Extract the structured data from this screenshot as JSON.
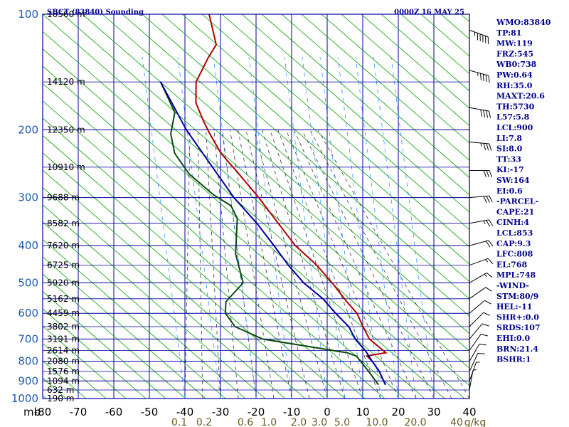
{
  "header": {
    "station_title": "SBCT (83840) Sounding",
    "time": "0000Z 16 MAY 25"
  },
  "chart_data": {
    "type": "line",
    "title": "SBCT (83840) Sounding",
    "xlabel": "",
    "ylabel": "mb",
    "xlim": [
      -80,
      40
    ],
    "ylim": [
      1000,
      100
    ],
    "pressure_labels": [
      "100",
      "200",
      "300",
      "400",
      "500",
      "600",
      "700",
      "800",
      "900",
      "1000"
    ],
    "temp_ticks": [
      "-80",
      "-70",
      "-60",
      "-50",
      "-40",
      "-30",
      "-20",
      "-10",
      "0",
      "10",
      "20",
      "30",
      "40"
    ],
    "mixing_ratio_labels": [
      "0.1",
      "0.2",
      "0.6",
      "1.0",
      "2.0",
      "3.0",
      "5.0",
      "10.0",
      "20.0",
      "40",
      "g/kg"
    ],
    "height_labels": [
      {
        "p": 100,
        "text": "16560 m"
      },
      {
        "p": 150,
        "text": "14120 m"
      },
      {
        "p": 200,
        "text": "12350 m"
      },
      {
        "p": 250,
        "text": "10910 m"
      },
      {
        "p": 300,
        "text": "9688 m"
      },
      {
        "p": 350,
        "text": "8582 m"
      },
      {
        "p": 400,
        "text": "7620 m"
      },
      {
        "p": 450,
        "text": "6725 m"
      },
      {
        "p": 500,
        "text": "5920 m"
      },
      {
        "p": 550,
        "text": "5162 m"
      },
      {
        "p": 600,
        "text": "4459 m"
      },
      {
        "p": 650,
        "text": "3802 m"
      },
      {
        "p": 700,
        "text": "3191 m"
      },
      {
        "p": 750,
        "text": "2614 m"
      },
      {
        "p": 800,
        "text": "2080 m"
      },
      {
        "p": 850,
        "text": "1576 m"
      },
      {
        "p": 900,
        "text": "1094 m"
      },
      {
        "p": 950,
        "text": "632 m"
      },
      {
        "p": 1000,
        "text": "190 m"
      }
    ],
    "series": [
      {
        "name": "",
        "role": "temperature",
        "color": "#b00000",
        "points": [
          {
            "p": 100,
            "t": -71
          },
          {
            "p": 120,
            "t": -66
          },
          {
            "p": 130,
            "t": -67
          },
          {
            "p": 150,
            "t": -68
          },
          {
            "p": 170,
            "t": -66
          },
          {
            "p": 190,
            "t": -62
          },
          {
            "p": 205,
            "t": -59
          },
          {
            "p": 230,
            "t": -54
          },
          {
            "p": 260,
            "t": -47
          },
          {
            "p": 300,
            "t": -39
          },
          {
            "p": 350,
            "t": -31
          },
          {
            "p": 400,
            "t": -24
          },
          {
            "p": 450,
            "t": -16
          },
          {
            "p": 500,
            "t": -10
          },
          {
            "p": 560,
            "t": -4
          },
          {
            "p": 600,
            "t": 0
          },
          {
            "p": 650,
            "t": 3
          },
          {
            "p": 700,
            "t": 6
          },
          {
            "p": 760,
            "t": 12
          },
          {
            "p": 775,
            "t": 7
          },
          {
            "p": 800,
            "t": 9
          },
          {
            "p": 850,
            "t": 12
          },
          {
            "p": 920,
            "t": 15
          }
        ]
      },
      {
        "name": "",
        "role": "dewpoint",
        "color": "#0a4a10",
        "points": [
          {
            "p": 150,
            "t": -78
          },
          {
            "p": 180,
            "t": -71
          },
          {
            "p": 205,
            "t": -70
          },
          {
            "p": 230,
            "t": -67
          },
          {
            "p": 260,
            "t": -61
          },
          {
            "p": 295,
            "t": -52
          },
          {
            "p": 315,
            "t": -46
          },
          {
            "p": 340,
            "t": -43
          },
          {
            "p": 420,
            "t": -40
          },
          {
            "p": 500,
            "t": -35
          },
          {
            "p": 560,
            "t": -38
          },
          {
            "p": 600,
            "t": -37
          },
          {
            "p": 650,
            "t": -33
          },
          {
            "p": 700,
            "t": -24
          },
          {
            "p": 760,
            "t": 1
          },
          {
            "p": 775,
            "t": 4
          },
          {
            "p": 850,
            "t": 9
          },
          {
            "p": 920,
            "t": 13
          }
        ]
      },
      {
        "name": "",
        "role": "parcel",
        "color": "#0000a0",
        "points": [
          {
            "p": 150,
            "t": -78
          },
          {
            "p": 200,
            "t": -66
          },
          {
            "p": 250,
            "t": -55
          },
          {
            "p": 300,
            "t": -46
          },
          {
            "p": 350,
            "t": -37
          },
          {
            "p": 400,
            "t": -30
          },
          {
            "p": 450,
            "t": -24
          },
          {
            "p": 500,
            "t": -18
          },
          {
            "p": 550,
            "t": -11
          },
          {
            "p": 600,
            "t": -6
          },
          {
            "p": 650,
            "t": -1
          },
          {
            "p": 700,
            "t": 2
          },
          {
            "p": 750,
            "t": 6
          },
          {
            "p": 800,
            "t": 9
          },
          {
            "p": 850,
            "t": 12
          },
          {
            "p": 920,
            "t": 15
          }
        ]
      }
    ],
    "wind_barbs": [
      {
        "p": 110,
        "dir": 290,
        "spd": 55
      },
      {
        "p": 140,
        "dir": 285,
        "spd": 45
      },
      {
        "p": 175,
        "dir": 280,
        "spd": 40
      },
      {
        "p": 215,
        "dir": 275,
        "spd": 35
      },
      {
        "p": 255,
        "dir": 270,
        "spd": 30
      },
      {
        "p": 300,
        "dir": 265,
        "spd": 30
      },
      {
        "p": 350,
        "dir": 260,
        "spd": 25
      },
      {
        "p": 400,
        "dir": 255,
        "spd": 20
      },
      {
        "p": 450,
        "dir": 250,
        "spd": 15
      },
      {
        "p": 500,
        "dir": 240,
        "spd": 15
      },
      {
        "p": 550,
        "dir": 235,
        "spd": 10
      },
      {
        "p": 600,
        "dir": 230,
        "spd": 10
      },
      {
        "p": 650,
        "dir": 225,
        "spd": 10
      },
      {
        "p": 700,
        "dir": 220,
        "spd": 10
      },
      {
        "p": 750,
        "dir": 215,
        "spd": 10
      },
      {
        "p": 800,
        "dir": 210,
        "spd": 10
      },
      {
        "p": 850,
        "dir": 205,
        "spd": 10
      },
      {
        "p": 900,
        "dir": 200,
        "spd": 5
      },
      {
        "p": 950,
        "dir": 190,
        "spd": 5
      }
    ]
  },
  "indices": [
    "WMO:83840",
    "TP:81",
    "MW:119",
    "FRZ:545",
    "WB0:738",
    "PW:0.64",
    "RH:35.0",
    "MAXT:20.6",
    "TH:5730",
    "L57:5.8",
    "LCL:900",
    "LI:7.8",
    "SI:8.0",
    "TT:33",
    "KI:-17",
    "SW:164",
    "EI:0.6",
    "-PARCEL-",
    "CAPE:21",
    "CINH:4",
    "LCL:853",
    "CAP:9.3",
    "LFC:808",
    "EL:768",
    "MPL:748",
    "-WIND-",
    "STM:80/9",
    "HEL:-11",
    "SHR+:0.0",
    "SRDS:107",
    "EHI:0.0",
    "BRN:21.4",
    "BSHR:1"
  ],
  "colors": {
    "grid": "#0000a0",
    "dry_adiabat": "#00a000",
    "moist_adiabat": "#3a3a3a",
    "mixing_ratio": "#3399ff",
    "temperature": "#b00000",
    "dewpoint": "#0a4a10",
    "parcel": "#0000a0"
  }
}
